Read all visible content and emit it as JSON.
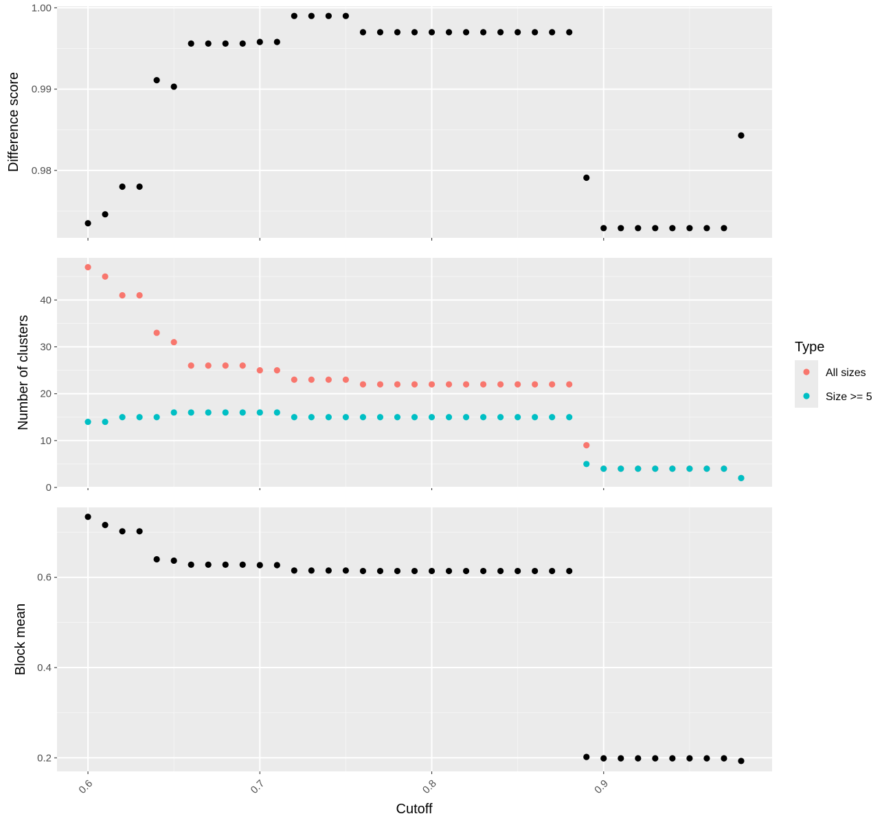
{
  "chart_data": {
    "type": "scatter",
    "x": [
      0.6,
      0.61,
      0.62,
      0.63,
      0.64,
      0.65,
      0.66,
      0.67,
      0.68,
      0.69,
      0.7,
      0.71,
      0.72,
      0.73,
      0.74,
      0.75,
      0.76,
      0.77,
      0.78,
      0.79,
      0.8,
      0.81,
      0.82,
      0.83,
      0.84,
      0.85,
      0.86,
      0.87,
      0.88,
      0.89,
      0.9,
      0.91,
      0.92,
      0.93,
      0.94,
      0.95,
      0.96,
      0.97,
      0.98
    ],
    "xlabel": "Cutoff",
    "xlim": [
      0.582,
      0.998
    ],
    "xticks": [
      {
        "value": 0.6,
        "label": "0.6"
      },
      {
        "value": 0.7,
        "label": "0.7"
      },
      {
        "value": 0.8,
        "label": "0.8"
      },
      {
        "value": 0.9,
        "label": "0.9"
      }
    ],
    "grid": true,
    "legend": {
      "title": "Type",
      "placement": "right",
      "entries": [
        {
          "label": "All sizes",
          "color": "#F8766D"
        },
        {
          "label": "Size >= 5",
          "color": "#00BFC4"
        }
      ]
    },
    "panels": [
      {
        "ylabel": "Difference score",
        "ylim": [
          0.9717,
          1.0002
        ],
        "yticks": [
          {
            "value": 0.98,
            "label": "0.98"
          },
          {
            "value": 0.99,
            "label": "0.99"
          },
          {
            "value": 1.0,
            "label": "1.00"
          }
        ],
        "series": [
          {
            "color": "#000000",
            "values": [
              0.9735,
              0.9746,
              0.978,
              0.978,
              0.9911,
              0.9903,
              0.9956,
              0.9956,
              0.9956,
              0.9956,
              0.9958,
              0.9958,
              0.999,
              0.999,
              0.999,
              0.999,
              0.997,
              0.997,
              0.997,
              0.997,
              0.997,
              0.997,
              0.997,
              0.997,
              0.997,
              0.997,
              0.997,
              0.997,
              0.997,
              0.9791,
              0.9729,
              0.9729,
              0.9729,
              0.9729,
              0.9729,
              0.9729,
              0.9729,
              0.9729,
              0.9843
            ]
          }
        ]
      },
      {
        "ylabel": "Number of clusters",
        "ylim": [
          0,
          49
        ],
        "yticks": [
          {
            "value": 0,
            "label": "0"
          },
          {
            "value": 10,
            "label": "10"
          },
          {
            "value": 20,
            "label": "20"
          },
          {
            "value": 30,
            "label": "30"
          },
          {
            "value": 40,
            "label": "40"
          }
        ],
        "series": [
          {
            "name": "All sizes",
            "color": "#F8766D",
            "values": [
              47,
              45,
              41,
              41,
              33,
              31,
              26,
              26,
              26,
              26,
              25,
              25,
              23,
              23,
              23,
              23,
              22,
              22,
              22,
              22,
              22,
              22,
              22,
              22,
              22,
              22,
              22,
              22,
              22,
              9,
              4,
              4,
              4,
              4,
              4,
              4,
              4,
              4,
              2
            ]
          },
          {
            "name": "Size >= 5",
            "color": "#00BFC4",
            "values": [
              14,
              14,
              15,
              15,
              15,
              16,
              16,
              16,
              16,
              16,
              16,
              16,
              15,
              15,
              15,
              15,
              15,
              15,
              15,
              15,
              15,
              15,
              15,
              15,
              15,
              15,
              15,
              15,
              15,
              5,
              4,
              4,
              4,
              4,
              4,
              4,
              4,
              4,
              2
            ]
          }
        ]
      },
      {
        "ylabel": "Block mean",
        "ylim": [
          0.17,
          0.755
        ],
        "yticks": [
          {
            "value": 0.2,
            "label": "0.2"
          },
          {
            "value": 0.4,
            "label": "0.4"
          },
          {
            "value": 0.6,
            "label": "0.6"
          }
        ],
        "series": [
          {
            "color": "#000000",
            "values": [
              0.734,
              0.716,
              0.702,
              0.702,
              0.64,
              0.637,
              0.628,
              0.628,
              0.628,
              0.628,
              0.627,
              0.627,
              0.615,
              0.615,
              0.615,
              0.615,
              0.614,
              0.614,
              0.614,
              0.614,
              0.614,
              0.614,
              0.614,
              0.614,
              0.614,
              0.614,
              0.614,
              0.614,
              0.614,
              0.202,
              0.199,
              0.199,
              0.199,
              0.199,
              0.199,
              0.199,
              0.199,
              0.199,
              0.193
            ]
          }
        ]
      }
    ]
  }
}
